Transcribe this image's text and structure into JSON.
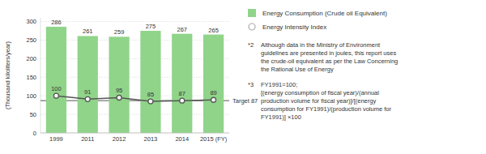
{
  "chart_data": {
    "type": "bar",
    "categories": [
      "1999",
      "2011",
      "2012",
      "2013",
      "2014",
      "2015 (FY)"
    ],
    "series": [
      {
        "name": "Energy Consumption (Crude oil Equivalent)",
        "type": "bar",
        "color": "#90d48a",
        "values": [
          286,
          261,
          259,
          275,
          267,
          265
        ]
      },
      {
        "name": "Energy Intensity Index",
        "type": "line",
        "color": "#555555",
        "marker": "circle",
        "values": [
          100,
          91,
          95,
          85,
          87,
          89
        ]
      }
    ],
    "y_label": "(Thousand kiloliters/year)",
    "ylim": [
      0,
      310
    ],
    "yticks": [
      0,
      50,
      100,
      150,
      200,
      250,
      300
    ],
    "grid": true,
    "legend": "top",
    "data_labels": true,
    "reference_line": {
      "value": 87,
      "label": "Target 87",
      "color": "#555555"
    },
    "notes": [
      {
        "label": "*2",
        "text": "Although data in the Ministry of Environment\nguidelines are presented in joules, this report uses\nthe crude-oil equivalent as per the Law Concerning\nthe Rational Use of Energy"
      },
      {
        "label": "*3",
        "text": "FY1991=100;\n[(energy consumption of fiscal year)/(annual\nproduction volume for fiscal year)]/[(energy\nconsumption for FY1991)/(production volume for\nFY1991)] ×100"
      }
    ]
  }
}
